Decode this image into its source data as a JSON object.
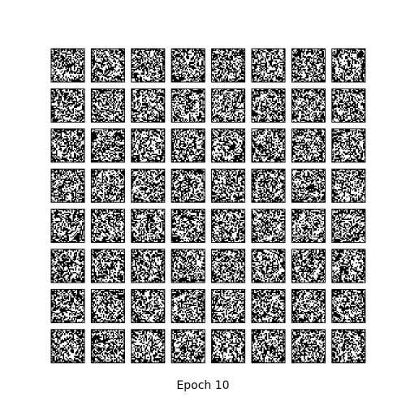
{
  "figure": {
    "caption": "Epoch 10",
    "rows": 8,
    "cols": 8,
    "sample_pixels": 28,
    "frame_color": "#000000",
    "foreground_color": "#000000",
    "background_color": "#ffffff"
  }
}
